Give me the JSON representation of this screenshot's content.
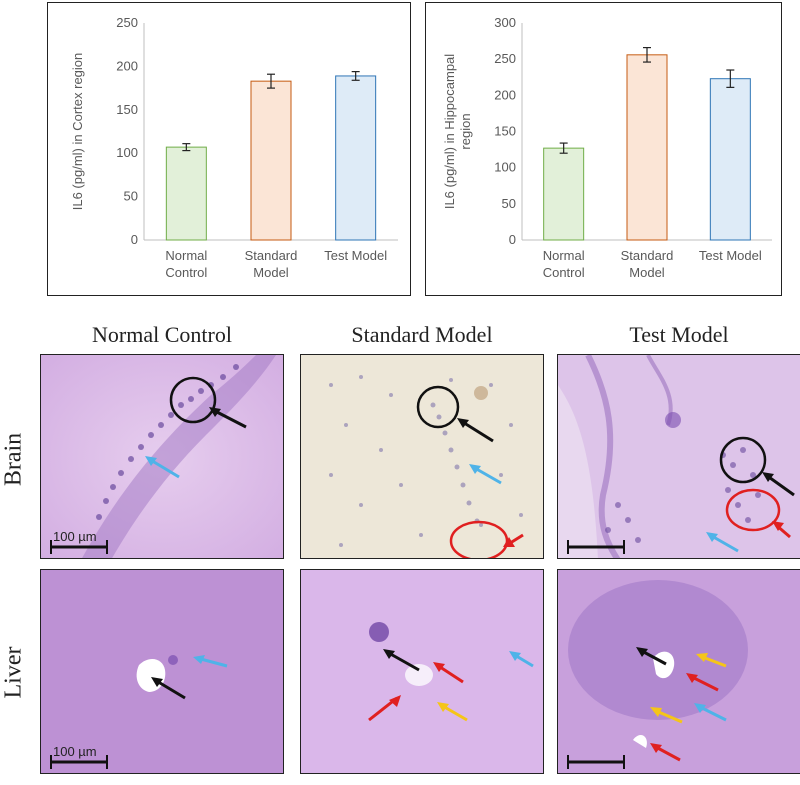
{
  "chart_data": [
    {
      "type": "bar",
      "categories": [
        [
          "Normal",
          "Control"
        ],
        [
          "Standard",
          "Model"
        ],
        [
          "Test Model"
        ]
      ],
      "values": [
        107,
        183,
        189
      ],
      "errors": [
        4,
        8,
        5
      ],
      "ylabel": "IL6 (pg/ml) in Cortex region",
      "ylim": [
        0,
        250
      ],
      "yticks": [
        0,
        50,
        100,
        150,
        200,
        250
      ],
      "colors": [
        "#e2f0d9",
        "#fbe5d6",
        "#deebf7"
      ],
      "edge_colors": [
        "#70ad47",
        "#c55a11",
        "#2e75b6"
      ],
      "grid": false
    },
    {
      "type": "bar",
      "categories": [
        [
          "Normal",
          "Control"
        ],
        [
          "Standard",
          "Model"
        ],
        [
          "Test Model"
        ]
      ],
      "values": [
        127,
        256,
        223
      ],
      "errors": [
        7,
        10,
        12
      ],
      "ylabel": [
        "IL6 (pg/ml) in Hippocampal",
        "region"
      ],
      "ylim": [
        0,
        300
      ],
      "yticks": [
        0,
        50,
        100,
        150,
        200,
        250,
        300
      ],
      "colors": [
        "#e2f0d9",
        "#fbe5d6",
        "#deebf7"
      ],
      "edge_colors": [
        "#70ad47",
        "#c55a11",
        "#2e75b6"
      ],
      "grid": false
    }
  ],
  "histology": {
    "columns": [
      "Normal Control",
      "Standard Model",
      "Test Model"
    ],
    "rows": [
      "Brain",
      "Liver"
    ],
    "scale_bar_label": "100 µm"
  }
}
